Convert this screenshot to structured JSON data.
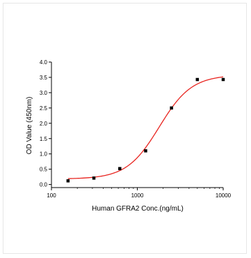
{
  "chart_data": {
    "type": "scatter",
    "title": "",
    "xlabel": "Human GFRA2 Conc.(ng/mL)",
    "ylabel": "OD Value (450nm)",
    "x_scale": "log",
    "xlim": [
      100,
      10000
    ],
    "ylim": [
      -0.1,
      4.0
    ],
    "x_ticks": [
      100,
      1000,
      10000
    ],
    "x_tick_labels": [
      "100",
      "1000",
      "10000"
    ],
    "y_ticks": [
      0.0,
      0.5,
      1.0,
      1.5,
      2.0,
      2.5,
      3.0,
      3.5,
      4.0
    ],
    "y_tick_labels": [
      "0.0",
      "0.5",
      "1.0",
      "1.5",
      "2.0",
      "2.5",
      "3.0",
      "3.5",
      "4.0"
    ],
    "grid": false,
    "legend": "none",
    "points": {
      "x": [
        156,
        312,
        625,
        1250,
        2500,
        5000,
        10000
      ],
      "y": [
        0.12,
        0.21,
        0.52,
        1.1,
        2.5,
        3.43,
        3.43
      ],
      "color": "#000000"
    },
    "fit": {
      "type": "4PL",
      "bottom": 0.18,
      "top": 3.58,
      "ec50": 1800,
      "hill": 2.3,
      "color": "#e8231e"
    }
  }
}
